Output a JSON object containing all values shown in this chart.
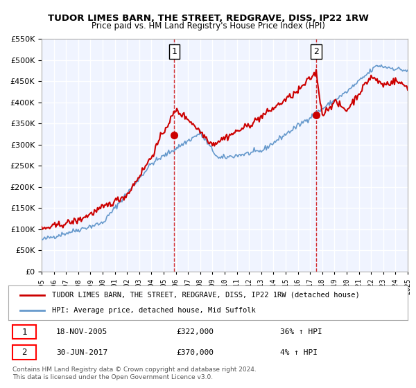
{
  "title": "TUDOR LIMES BARN, THE STREET, REDGRAVE, DISS, IP22 1RW",
  "subtitle": "Price paid vs. HM Land Registry's House Price Index (HPI)",
  "legend_line1": "TUDOR LIMES BARN, THE STREET, REDGRAVE, DISS, IP22 1RW (detached house)",
  "legend_line2": "HPI: Average price, detached house, Mid Suffolk",
  "sale1_label": "1",
  "sale1_date": "18-NOV-2005",
  "sale1_price": "£322,000",
  "sale1_hpi": "36% ↑ HPI",
  "sale2_label": "2",
  "sale2_date": "30-JUN-2017",
  "sale2_price": "£370,000",
  "sale2_hpi": "4% ↑ HPI",
  "copyright": "Contains HM Land Registry data © Crown copyright and database right 2024.\nThis data is licensed under the Open Government Licence v3.0.",
  "sale1_x": 2005.88,
  "sale1_y": 322000,
  "sale2_x": 2017.49,
  "sale2_y": 370000,
  "vline1_x": 2005.88,
  "vline2_x": 2017.49,
  "xlim": [
    1995,
    2025
  ],
  "ylim": [
    0,
    550000
  ],
  "yticks": [
    0,
    50000,
    100000,
    150000,
    200000,
    250000,
    300000,
    350000,
    400000,
    450000,
    500000,
    550000
  ],
  "bg_color": "#f0f4ff",
  "grid_color": "#ffffff",
  "red_line_color": "#cc0000",
  "blue_line_color": "#6699cc",
  "vline_color": "#cc0000"
}
